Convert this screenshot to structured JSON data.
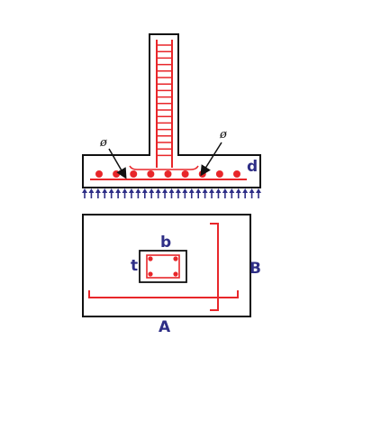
{
  "colors": {
    "concrete_outline": "#111111",
    "rebar": "#e8262a",
    "soil_pressure": "#2e2e86",
    "label": "#2e2e86"
  },
  "elevation": {
    "phi_left": "ø",
    "phi_right": "ø",
    "depth_label": "d",
    "bottom_bar_count": 9,
    "column_stirrup_count": 18,
    "pressure_arrow_count": 27
  },
  "plan": {
    "column_width_label": "b",
    "column_depth_label": "t",
    "footing_width_label": "B",
    "footing_length_label": "A",
    "column_corner_bars": 4
  }
}
